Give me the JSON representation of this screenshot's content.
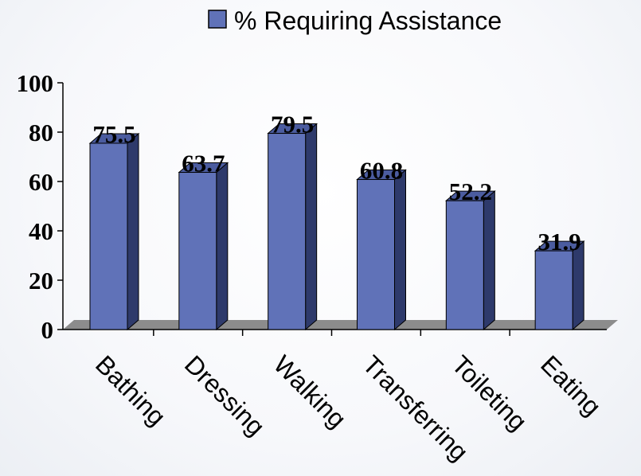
{
  "chart_data": {
    "type": "bar",
    "categories": [
      "Bathing",
      "Dressing",
      "Walking",
      "Transferring",
      "Toileting",
      "Eating"
    ],
    "series": [
      {
        "name": "% Requiring Assistance",
        "values": [
          75.5,
          63.7,
          79.5,
          60.8,
          52.2,
          31.9
        ]
      }
    ],
    "data_labels": [
      "75.5",
      "63.7",
      "79.5",
      "60.8",
      "52.2",
      "31.9"
    ],
    "ylim": [
      0,
      100
    ],
    "yticks": [
      "0",
      "20",
      "40",
      "60",
      "80",
      "100"
    ],
    "grid": false,
    "legend_position": "top",
    "three_d": true,
    "colors": {
      "bar_front": "#6072b8",
      "bar_side": "#2e3a6b",
      "bar_top": "#4b5c9f",
      "floor": "#8c8c8c"
    }
  }
}
